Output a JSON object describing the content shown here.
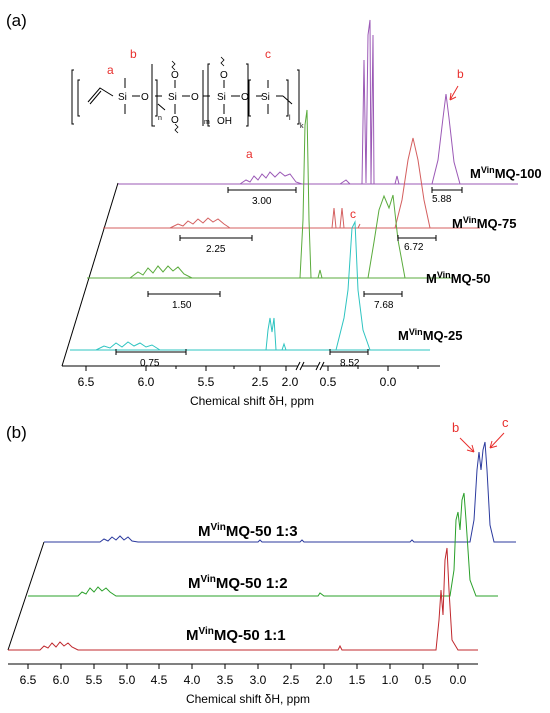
{
  "chart_data": [
    {
      "panel_label": "(a)",
      "type": "line",
      "xlabel": "Chemical shift δH, ppm",
      "x_ticks": [
        "6.5",
        "6.0",
        "5.5",
        "2.5",
        "2.0",
        "0.5",
        "0.0"
      ],
      "xlim": [
        6.8,
        -0.4
      ],
      "structure": {
        "si_label": "Si",
        "o_label": "O",
        "oh_label": "OH",
        "subscripts": [
          "n",
          "m",
          "l",
          "k"
        ],
        "site_labels": [
          "a",
          "b",
          "c"
        ]
      },
      "peak_labels": [
        {
          "label": "a",
          "series": "MVinMQ-100"
        },
        {
          "label": "b",
          "series": "MVinMQ-100"
        },
        {
          "label": "c",
          "series": "MVinMQ-75"
        }
      ],
      "series": [
        {
          "name": "MVinMQ-100",
          "color": "#9b59b6",
          "integrals": [
            "3.00",
            "5.88"
          ]
        },
        {
          "name": "MVinMQ-75",
          "color": "#d45f5f",
          "integrals": [
            "2.25",
            "6.72"
          ]
        },
        {
          "name": "MVinMQ-50",
          "color": "#5aab3c",
          "integrals": [
            "1.50",
            "7.68"
          ]
        },
        {
          "name": "MVinMQ-25",
          "color": "#2ec4c1",
          "integrals": [
            "0.75",
            "8.52"
          ]
        }
      ]
    },
    {
      "panel_label": "(b)",
      "type": "line",
      "xlabel": "Chemical shift δH, ppm",
      "x_ticks": [
        "6.5",
        "6.0",
        "5.5",
        "5.0",
        "4.5",
        "4.0",
        "3.5",
        "3.0",
        "2.5",
        "2.0",
        "1.5",
        "1.0",
        "0.5",
        "0.0"
      ],
      "xlim": [
        6.8,
        -0.4
      ],
      "peak_labels": [
        "b",
        "c"
      ],
      "series": [
        {
          "name": "MVinMQ-50 1:3",
          "color": "#2b3a9e"
        },
        {
          "name": "MVinMQ-50 1:2",
          "color": "#2aa02a"
        },
        {
          "name": "MVinMQ-50 1:1",
          "color": "#c0282d"
        }
      ]
    }
  ]
}
